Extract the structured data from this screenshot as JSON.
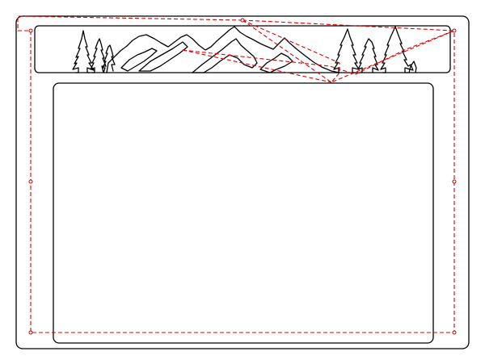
{
  "drawing": {
    "outline_color": "#000000",
    "toolpath_color": "#e00000",
    "toolpath_style": "dashed",
    "elements": [
      "outer-frame-outline",
      "top-banner-cutout",
      "mountain-silhouette",
      "pine-trees-left",
      "pine-trees-right",
      "center-panel-opening",
      "tool-travel-path",
      "tab-markers"
    ],
    "tab_marker_count": 7
  }
}
